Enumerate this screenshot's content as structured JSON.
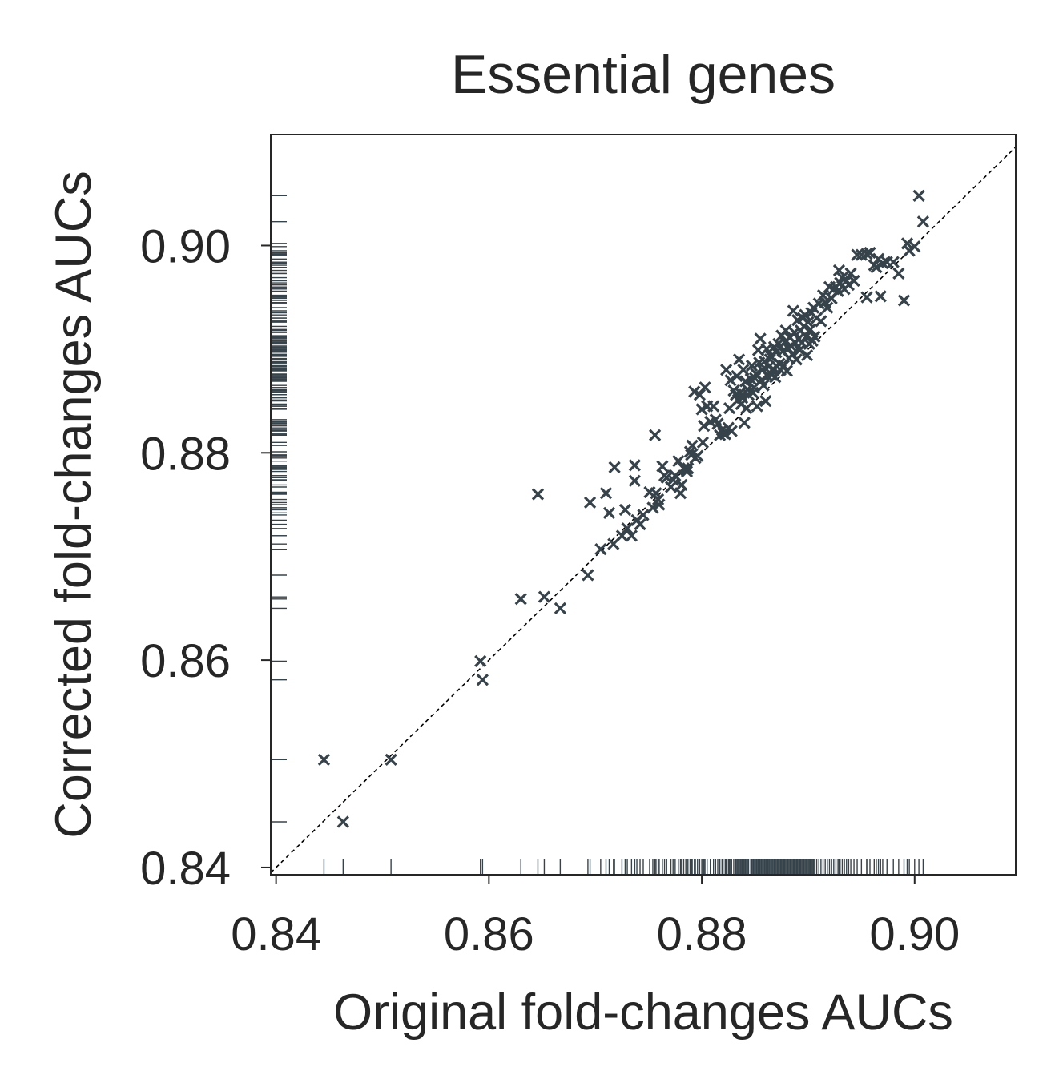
{
  "chart_data": {
    "type": "scatter",
    "title": "Essential genes",
    "xlabel": "Original fold-changes AUCs",
    "ylabel": "Corrected fold-changes AUCs",
    "xlim": [
      0.8395,
      0.9095
    ],
    "ylim": [
      0.8393,
      0.9107
    ],
    "xticks": [
      "0.84",
      "0.86",
      "0.88",
      "0.90"
    ],
    "yticks": [
      "0.84",
      "0.86",
      "0.88",
      "0.90"
    ],
    "xtick_values": [
      0.84,
      0.86,
      0.88,
      0.9
    ],
    "ytick_values": [
      0.84,
      0.86,
      0.88,
      0.9
    ],
    "marker": "x",
    "marker_color": "#37434a",
    "diagonal": "y = x (dashed)",
    "rug_plots": "x-axis bottom, y-axis left",
    "grid": false,
    "points": [
      [
        0.8445,
        0.8504
      ],
      [
        0.8463,
        0.8444
      ],
      [
        0.8508,
        0.8504
      ],
      [
        0.8592,
        0.8599
      ],
      [
        0.8594,
        0.8581
      ],
      [
        0.863,
        0.8659
      ],
      [
        0.8646,
        0.876
      ],
      [
        0.8652,
        0.8661
      ],
      [
        0.8667,
        0.865
      ],
      [
        0.8693,
        0.8682
      ],
      [
        0.8695,
        0.8752
      ],
      [
        0.8705,
        0.8707
      ],
      [
        0.871,
        0.8761
      ],
      [
        0.8713,
        0.8742
      ],
      [
        0.8717,
        0.8712
      ],
      [
        0.8718,
        0.8786
      ],
      [
        0.8725,
        0.872
      ],
      [
        0.8728,
        0.8745
      ],
      [
        0.873,
        0.8727
      ],
      [
        0.8734,
        0.872
      ],
      [
        0.8737,
        0.8773
      ],
      [
        0.8737,
        0.8788
      ],
      [
        0.8739,
        0.8735
      ],
      [
        0.8742,
        0.8731
      ],
      [
        0.8745,
        0.874
      ],
      [
        0.8751,
        0.8762
      ],
      [
        0.8754,
        0.8747
      ],
      [
        0.8756,
        0.8817
      ],
      [
        0.8757,
        0.8761
      ],
      [
        0.8759,
        0.8755
      ],
      [
        0.876,
        0.875
      ],
      [
        0.8763,
        0.8787
      ],
      [
        0.8765,
        0.8778
      ],
      [
        0.8767,
        0.8776
      ],
      [
        0.8771,
        0.8767
      ],
      [
        0.8773,
        0.8774
      ],
      [
        0.8775,
        0.8778
      ],
      [
        0.8778,
        0.8792
      ],
      [
        0.878,
        0.8761
      ],
      [
        0.8781,
        0.8769
      ],
      [
        0.8783,
        0.8785
      ],
      [
        0.8785,
        0.8784
      ],
      [
        0.8786,
        0.8782
      ],
      [
        0.8787,
        0.8785
      ],
      [
        0.8789,
        0.8801
      ],
      [
        0.879,
        0.8798
      ],
      [
        0.8791,
        0.8807
      ],
      [
        0.8793,
        0.8859
      ],
      [
        0.8794,
        0.8795
      ],
      [
        0.8796,
        0.8797
      ],
      [
        0.8798,
        0.8856
      ],
      [
        0.88,
        0.8842
      ],
      [
        0.8801,
        0.881
      ],
      [
        0.8802,
        0.8826
      ],
      [
        0.8803,
        0.8863
      ],
      [
        0.8805,
        0.8845
      ],
      [
        0.8808,
        0.883
      ],
      [
        0.8811,
        0.8845
      ],
      [
        0.8813,
        0.8832
      ],
      [
        0.8815,
        0.8828
      ],
      [
        0.8817,
        0.8817
      ],
      [
        0.8819,
        0.8822
      ],
      [
        0.882,
        0.8819
      ],
      [
        0.8822,
        0.8818
      ],
      [
        0.8823,
        0.888
      ],
      [
        0.8825,
        0.8824
      ],
      [
        0.8826,
        0.8843
      ],
      [
        0.8827,
        0.887
      ],
      [
        0.8828,
        0.8821
      ],
      [
        0.883,
        0.886
      ],
      [
        0.8832,
        0.8856
      ],
      [
        0.8833,
        0.8874
      ],
      [
        0.8834,
        0.8851
      ],
      [
        0.8835,
        0.889
      ],
      [
        0.8836,
        0.8858
      ],
      [
        0.8837,
        0.8847
      ],
      [
        0.8838,
        0.8853
      ],
      [
        0.8839,
        0.888
      ],
      [
        0.884,
        0.8829
      ],
      [
        0.8841,
        0.8869
      ],
      [
        0.8842,
        0.8843
      ],
      [
        0.8843,
        0.8861
      ],
      [
        0.8844,
        0.8856
      ],
      [
        0.8846,
        0.8871
      ],
      [
        0.8847,
        0.8884
      ],
      [
        0.8848,
        0.8858
      ],
      [
        0.8849,
        0.8863
      ],
      [
        0.885,
        0.8872
      ],
      [
        0.8851,
        0.8876
      ],
      [
        0.8852,
        0.8845
      ],
      [
        0.8853,
        0.8899
      ],
      [
        0.8854,
        0.8887
      ],
      [
        0.8855,
        0.891
      ],
      [
        0.8856,
        0.887
      ],
      [
        0.8857,
        0.888
      ],
      [
        0.8858,
        0.8865
      ],
      [
        0.8859,
        0.8888
      ],
      [
        0.886,
        0.885
      ],
      [
        0.8861,
        0.89
      ],
      [
        0.8862,
        0.8874
      ],
      [
        0.8863,
        0.8883
      ],
      [
        0.8864,
        0.889
      ],
      [
        0.8865,
        0.8893
      ],
      [
        0.8866,
        0.8875
      ],
      [
        0.8867,
        0.8881
      ],
      [
        0.8868,
        0.8902
      ],
      [
        0.8869,
        0.8873
      ],
      [
        0.887,
        0.8897
      ],
      [
        0.8871,
        0.8883
      ],
      [
        0.8872,
        0.8905
      ],
      [
        0.8873,
        0.8886
      ],
      [
        0.8874,
        0.888
      ],
      [
        0.8875,
        0.8913
      ],
      [
        0.8876,
        0.8898
      ],
      [
        0.8877,
        0.8884
      ],
      [
        0.8878,
        0.8907
      ],
      [
        0.8879,
        0.8918
      ],
      [
        0.888,
        0.8879
      ],
      [
        0.8881,
        0.8901
      ],
      [
        0.8882,
        0.8891
      ],
      [
        0.8883,
        0.8911
      ],
      [
        0.8884,
        0.8903
      ],
      [
        0.8885,
        0.8895
      ],
      [
        0.8886,
        0.8937
      ],
      [
        0.8887,
        0.8916
      ],
      [
        0.8888,
        0.8906
      ],
      [
        0.8889,
        0.889
      ],
      [
        0.889,
        0.8928
      ],
      [
        0.8891,
        0.891
      ],
      [
        0.8892,
        0.8899
      ],
      [
        0.8893,
        0.8918
      ],
      [
        0.8894,
        0.8906
      ],
      [
        0.8895,
        0.893
      ],
      [
        0.8896,
        0.8922
      ],
      [
        0.8897,
        0.8933
      ],
      [
        0.8898,
        0.8912
      ],
      [
        0.8899,
        0.8894
      ],
      [
        0.89,
        0.8926
      ],
      [
        0.8901,
        0.8905
      ],
      [
        0.8902,
        0.8919
      ],
      [
        0.8903,
        0.8935
      ],
      [
        0.8904,
        0.8908
      ],
      [
        0.8905,
        0.894
      ],
      [
        0.8906,
        0.8912
      ],
      [
        0.8908,
        0.893
      ],
      [
        0.891,
        0.8944
      ],
      [
        0.8912,
        0.8927
      ],
      [
        0.8914,
        0.8952
      ],
      [
        0.8916,
        0.8945
      ],
      [
        0.8918,
        0.894
      ],
      [
        0.892,
        0.896
      ],
      [
        0.8922,
        0.8949
      ],
      [
        0.8924,
        0.8958
      ],
      [
        0.8926,
        0.896
      ],
      [
        0.8928,
        0.8956
      ],
      [
        0.8929,
        0.8976
      ],
      [
        0.893,
        0.8964
      ],
      [
        0.8932,
        0.8969
      ],
      [
        0.8934,
        0.8958
      ],
      [
        0.8936,
        0.8966
      ],
      [
        0.8938,
        0.8962
      ],
      [
        0.894,
        0.8973
      ],
      [
        0.8943,
        0.8966
      ],
      [
        0.8946,
        0.8991
      ],
      [
        0.895,
        0.8991
      ],
      [
        0.8955,
        0.8992
      ],
      [
        0.8958,
        0.8993
      ],
      [
        0.8962,
        0.8981
      ],
      [
        0.8964,
        0.8979
      ],
      [
        0.8966,
        0.8987
      ],
      [
        0.897,
        0.8983
      ],
      [
        0.8968,
        0.8951
      ],
      [
        0.8974,
        0.8984
      ],
      [
        0.898,
        0.8984
      ],
      [
        0.8993,
        0.9002
      ],
      [
        0.9004,
        0.9048
      ],
      [
        0.9008,
        0.9023
      ],
      [
        0.8985,
        0.8973
      ],
      [
        0.899,
        0.8947
      ],
      [
        0.8955,
        0.895
      ],
      [
        0.8995,
        0.8995
      ],
      [
        0.9,
        0.8999
      ]
    ]
  }
}
